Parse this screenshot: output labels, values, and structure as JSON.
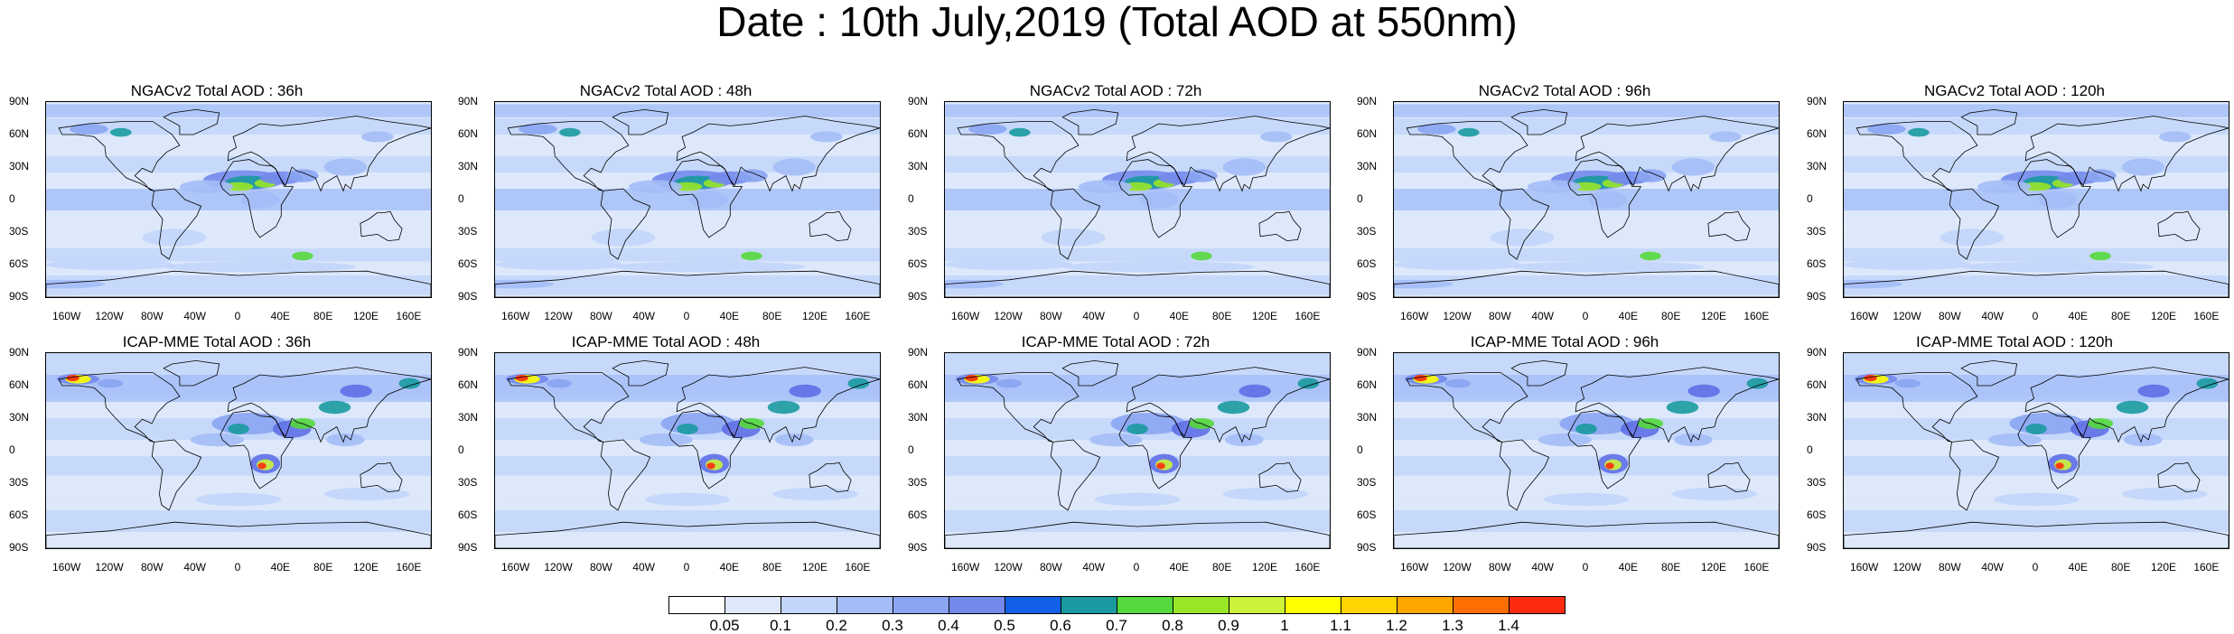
{
  "title": "Date : 10th July,2019 (Total AOD at 550nm)",
  "y_ticks": [
    "90N",
    "60N",
    "30N",
    "0",
    "30S",
    "60S",
    "90S"
  ],
  "x_ticks": [
    "160W",
    "120W",
    "80W",
    "40W",
    "0",
    "40E",
    "80E",
    "120E",
    "160E"
  ],
  "panels": [
    {
      "title": "NGACv2 Total AOD : 36h",
      "model": "NGACv2"
    },
    {
      "title": "NGACv2 Total AOD : 48h",
      "model": "NGACv2"
    },
    {
      "title": "NGACv2 Total AOD : 72h",
      "model": "NGACv2"
    },
    {
      "title": "NGACv2 Total AOD : 96h",
      "model": "NGACv2"
    },
    {
      "title": "NGACv2 Total AOD : 120h",
      "model": "NGACv2"
    },
    {
      "title": "ICAP-MME Total AOD : 36h",
      "model": "ICAP"
    },
    {
      "title": "ICAP-MME Total AOD : 48h",
      "model": "ICAP"
    },
    {
      "title": "ICAP-MME Total AOD : 72h",
      "model": "ICAP"
    },
    {
      "title": "ICAP-MME Total AOD : 96h",
      "model": "ICAP"
    },
    {
      "title": "ICAP-MME Total AOD : 120h",
      "model": "ICAP"
    }
  ],
  "colorbar": {
    "labels": [
      "0.05",
      "0.1",
      "0.2",
      "0.3",
      "0.4",
      "0.5",
      "0.6",
      "0.7",
      "0.8",
      "0.9",
      "1",
      "1.1",
      "1.2",
      "1.3",
      "1.4"
    ],
    "colors": [
      "#ffffff",
      "#dde8fb",
      "#c2d5fa",
      "#a4bdf7",
      "#8aa4f2",
      "#7389ec",
      "#5f6fe6",
      "#1560e8",
      "#1a9aa0",
      "#55d83c",
      "#98e628",
      "#ccf23a",
      "#ffff00",
      "#ffd400",
      "#ffa500",
      "#ff6e00",
      "#ff2b10"
    ]
  },
  "colors": {
    "land_line": "#000000",
    "background_aod": "#c9d8f8"
  }
}
